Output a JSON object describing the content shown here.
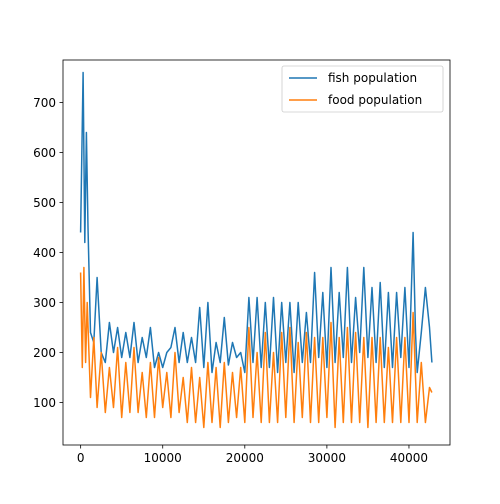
{
  "chart_data": {
    "type": "line",
    "title": "",
    "xlabel": "",
    "ylabel": "",
    "xlim": [
      -2150,
      45000
    ],
    "ylim": [
      15,
      785
    ],
    "x_ticks": [
      0,
      10000,
      20000,
      30000,
      40000
    ],
    "y_ticks": [
      100,
      200,
      300,
      400,
      500,
      600,
      700
    ],
    "x_tick_labels": [
      "0",
      "10000",
      "20000",
      "30000",
      "40000"
    ],
    "y_tick_labels": [
      "100",
      "200",
      "300",
      "400",
      "500",
      "600",
      "700"
    ],
    "grid": false,
    "legend_position": "top-right",
    "series": [
      {
        "name": "fish population",
        "color": "#1f77b4",
        "x": [
          0,
          300,
          500,
          700,
          900,
          1200,
          1600,
          2000,
          2500,
          3000,
          3500,
          4000,
          4500,
          5000,
          5500,
          6000,
          6500,
          7000,
          7500,
          8000,
          8500,
          9000,
          9500,
          10000,
          10500,
          11000,
          11500,
          12000,
          12500,
          13000,
          13500,
          14000,
          14500,
          15000,
          15500,
          16000,
          16500,
          17000,
          17500,
          18000,
          18500,
          19000,
          19500,
          20000,
          20500,
          21000,
          21500,
          22000,
          22500,
          23000,
          23500,
          24000,
          24500,
          25000,
          25500,
          26000,
          26500,
          27000,
          27500,
          28000,
          28500,
          29000,
          29500,
          30000,
          30500,
          31000,
          31500,
          32000,
          32500,
          33000,
          33500,
          34000,
          34500,
          35000,
          35500,
          36000,
          36500,
          37000,
          37500,
          38000,
          38500,
          39000,
          39500,
          40000,
          40500,
          40800,
          41000,
          41500,
          42000,
          42500,
          42800
        ],
        "y": [
          440,
          760,
          420,
          640,
          450,
          240,
          220,
          350,
          200,
          180,
          260,
          200,
          250,
          190,
          240,
          190,
          260,
          180,
          230,
          190,
          250,
          170,
          200,
          170,
          200,
          210,
          250,
          180,
          240,
          180,
          230,
          180,
          290,
          170,
          300,
          160,
          220,
          180,
          270,
          175,
          220,
          190,
          200,
          160,
          310,
          180,
          310,
          170,
          300,
          170,
          310,
          160,
          300,
          180,
          300,
          160,
          300,
          180,
          280,
          180,
          360,
          190,
          320,
          170,
          370,
          180,
          320,
          190,
          370,
          180,
          310,
          200,
          370,
          190,
          330,
          180,
          340,
          170,
          320,
          170,
          320,
          190,
          330,
          170,
          440,
          240,
          160,
          240,
          330,
          250,
          180
        ]
      },
      {
        "name": "food population",
        "color": "#ff7f0e",
        "x": [
          0,
          200,
          400,
          600,
          800,
          1200,
          1600,
          2000,
          2500,
          3000,
          3500,
          4000,
          4500,
          5000,
          5500,
          6000,
          6500,
          7000,
          7500,
          8000,
          8500,
          9000,
          9500,
          10000,
          10500,
          11000,
          11500,
          12000,
          12500,
          13000,
          13500,
          14000,
          14500,
          15000,
          15500,
          16000,
          16500,
          17000,
          17500,
          18000,
          18500,
          19000,
          19500,
          20000,
          20500,
          21000,
          21500,
          22000,
          22500,
          23000,
          23500,
          24000,
          24500,
          25000,
          25500,
          26000,
          26500,
          27000,
          27500,
          28000,
          28500,
          29000,
          29500,
          30000,
          30500,
          31000,
          31500,
          32000,
          32500,
          33000,
          33500,
          34000,
          34500,
          35000,
          35500,
          36000,
          36500,
          37000,
          37500,
          38000,
          38500,
          39000,
          39500,
          40000,
          40500,
          41000,
          41500,
          42000,
          42500,
          42800
        ],
        "y": [
          360,
          170,
          370,
          180,
          300,
          110,
          230,
          90,
          200,
          80,
          170,
          90,
          210,
          70,
          180,
          80,
          210,
          80,
          160,
          70,
          180,
          70,
          190,
          90,
          160,
          70,
          200,
          80,
          150,
          60,
          170,
          60,
          150,
          50,
          180,
          60,
          170,
          50,
          180,
          60,
          160,
          70,
          170,
          60,
          250,
          70,
          200,
          60,
          240,
          60,
          200,
          60,
          240,
          70,
          250,
          60,
          220,
          70,
          240,
          60,
          230,
          60,
          230,
          70,
          260,
          50,
          230,
          60,
          250,
          60,
          240,
          60,
          230,
          50,
          230,
          60,
          230,
          60,
          210,
          60,
          230,
          60,
          230,
          60,
          280,
          60,
          180,
          60,
          130,
          120
        ]
      }
    ]
  }
}
